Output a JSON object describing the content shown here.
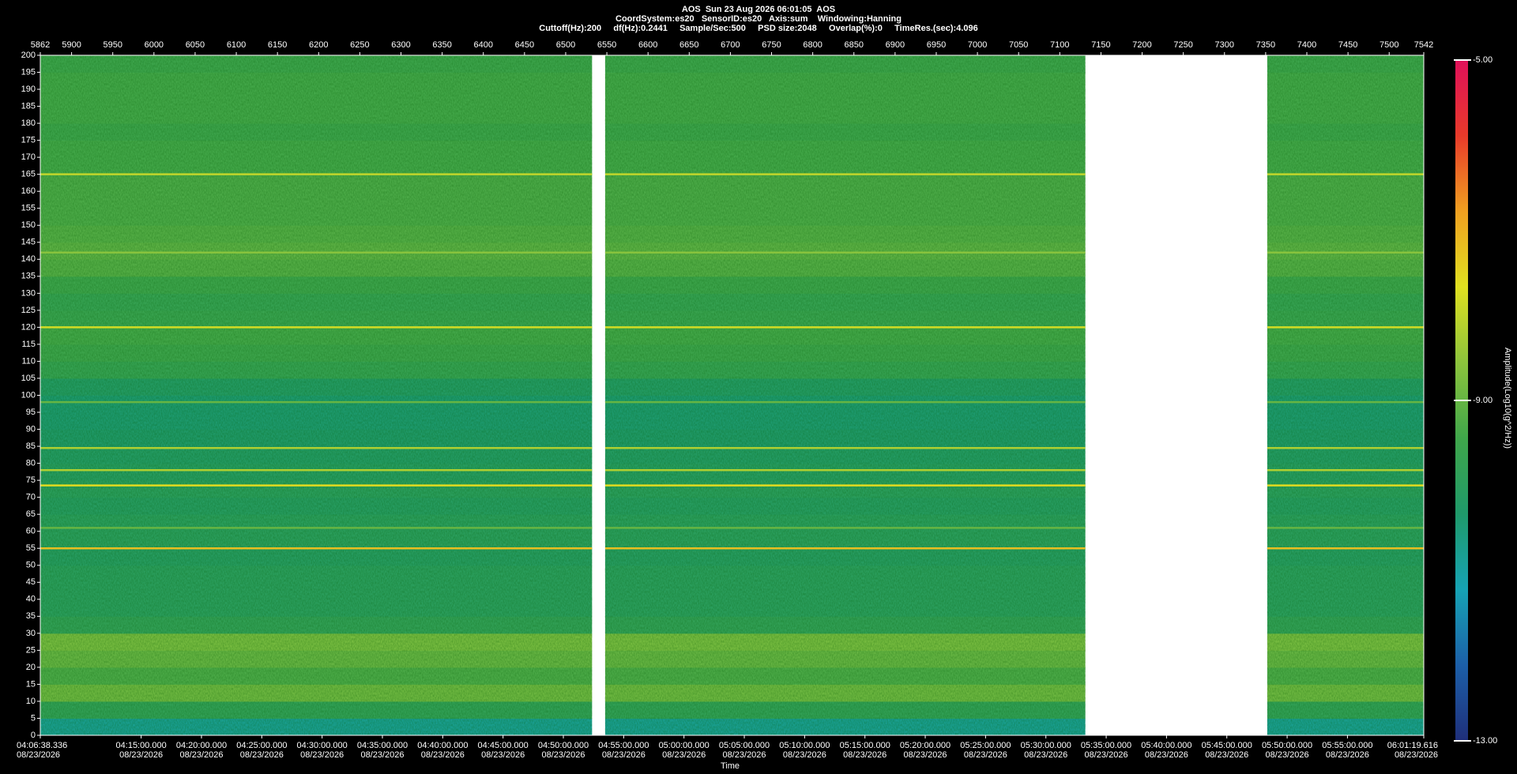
{
  "chart_data": {
    "type": "spectrogram",
    "title_lines": [
      "AOS  Sun 23 Aug 2026 06:01:05  AOS",
      "CoordSystem:es20   SensorID:es20   Axis:sum    Windowing:Hanning",
      "Cuttoff(Hz):200     df(Hz):0.2441     Sample/Sec:500     PSD size:2048     Overlap(%):0     TimeRes.(sec):4.096"
    ],
    "xlim": [
      5862,
      7542
    ],
    "xticks": [
      5862,
      5900,
      5950,
      6000,
      6050,
      6100,
      6150,
      6200,
      6250,
      6300,
      6350,
      6400,
      6450,
      6500,
      6550,
      6600,
      6650,
      6700,
      6750,
      6800,
      6850,
      6900,
      6950,
      7000,
      7050,
      7100,
      7150,
      7200,
      7250,
      7300,
      7350,
      7400,
      7450,
      7500,
      7542
    ],
    "x2_label": "Time",
    "x2_date": "08/23/2026",
    "x2lim": [
      14798.336,
      21679.616
    ],
    "x2ticks": [
      {
        "value": 14798.336,
        "label": "04:06:38.336"
      },
      {
        "value": 15300,
        "label": "04:15:00.000"
      },
      {
        "value": 15600,
        "label": "04:20:00.000"
      },
      {
        "value": 15900,
        "label": "04:25:00.000"
      },
      {
        "value": 16200,
        "label": "04:30:00.000"
      },
      {
        "value": 16500,
        "label": "04:35:00.000"
      },
      {
        "value": 16800,
        "label": "04:40:00.000"
      },
      {
        "value": 17100,
        "label": "04:45:00.000"
      },
      {
        "value": 17400,
        "label": "04:50:00.000"
      },
      {
        "value": 17700,
        "label": "04:55:00.000"
      },
      {
        "value": 18000,
        "label": "05:00:00.000"
      },
      {
        "value": 18300,
        "label": "05:05:00.000"
      },
      {
        "value": 18600,
        "label": "05:10:00.000"
      },
      {
        "value": 18900,
        "label": "05:15:00.000"
      },
      {
        "value": 19200,
        "label": "05:20:00.000"
      },
      {
        "value": 19500,
        "label": "05:25:00.000"
      },
      {
        "value": 19800,
        "label": "05:30:00.000"
      },
      {
        "value": 20100,
        "label": "05:35:00.000"
      },
      {
        "value": 20400,
        "label": "05:40:00.000"
      },
      {
        "value": 20700,
        "label": "05:45:00.000"
      },
      {
        "value": 21000,
        "label": "05:50:00.000"
      },
      {
        "value": 21300,
        "label": "05:55:00.000"
      },
      {
        "value": 21679.616,
        "label": "06:01:19.616"
      }
    ],
    "ylim": [
      0,
      200
    ],
    "yticks": [
      0,
      5,
      10,
      15,
      20,
      25,
      30,
      35,
      40,
      45,
      50,
      55,
      60,
      65,
      70,
      75,
      80,
      85,
      90,
      95,
      100,
      105,
      110,
      115,
      120,
      125,
      130,
      135,
      140,
      145,
      150,
      155,
      160,
      165,
      170,
      175,
      180,
      185,
      190,
      195,
      200
    ],
    "segments": [
      [
        5862,
        6532
      ],
      [
        6548,
        7131
      ],
      [
        7352,
        7542
      ]
    ],
    "frequency_bins": [
      0,
      5,
      10,
      15,
      20,
      25,
      30,
      35,
      40,
      45,
      50,
      55,
      60,
      65,
      70,
      75,
      80,
      85,
      90,
      95,
      100,
      105,
      110,
      115,
      120,
      125,
      130,
      135,
      140,
      145,
      150,
      155,
      160,
      165,
      170,
      175,
      180,
      185,
      190,
      195,
      200
    ],
    "amplitude": [
      -10.8,
      -9.8,
      -8.9,
      -9.3,
      -9.0,
      -8.8,
      -9.8,
      -10.0,
      -10.0,
      -10.0,
      -10.1,
      -10.0,
      -10.0,
      -10.1,
      -10.0,
      -10.1,
      -10.2,
      -10.3,
      -10.4,
      -10.4,
      -10.2,
      -9.7,
      -9.5,
      -9.4,
      -9.6,
      -9.7,
      -9.5,
      -9.2,
      -9.1,
      -9.2,
      -9.3,
      -9.3,
      -9.3,
      -9.4,
      -9.4,
      -9.5,
      -9.4,
      -9.4,
      -9.4,
      -9.5
    ],
    "tones": {
      "frequency": [
        55,
        61,
        73.5,
        78,
        84.5,
        98,
        120,
        142,
        165
      ],
      "amplitude": [
        -7.2,
        -9.0,
        -7.6,
        -8.2,
        -8.2,
        -9.0,
        -7.8,
        -8.6,
        -8.0
      ]
    },
    "colorbar_label": "Amplitude(Log10(g^2/Hz))",
    "zlim": [
      -13,
      -5
    ],
    "zticks": [
      {
        "value": -13,
        "label": "-13.00"
      },
      {
        "value": -9,
        "label": "-9.00"
      },
      {
        "value": -5,
        "label": "-5.00"
      }
    ],
    "colormap": [
      "#1f2f7a",
      "#1c5fa8",
      "#16a3b4",
      "#1f9a6a",
      "#3fa64a",
      "#8cc43c",
      "#e0e020",
      "#f0a020",
      "#e83a2a",
      "#e0105a"
    ]
  }
}
